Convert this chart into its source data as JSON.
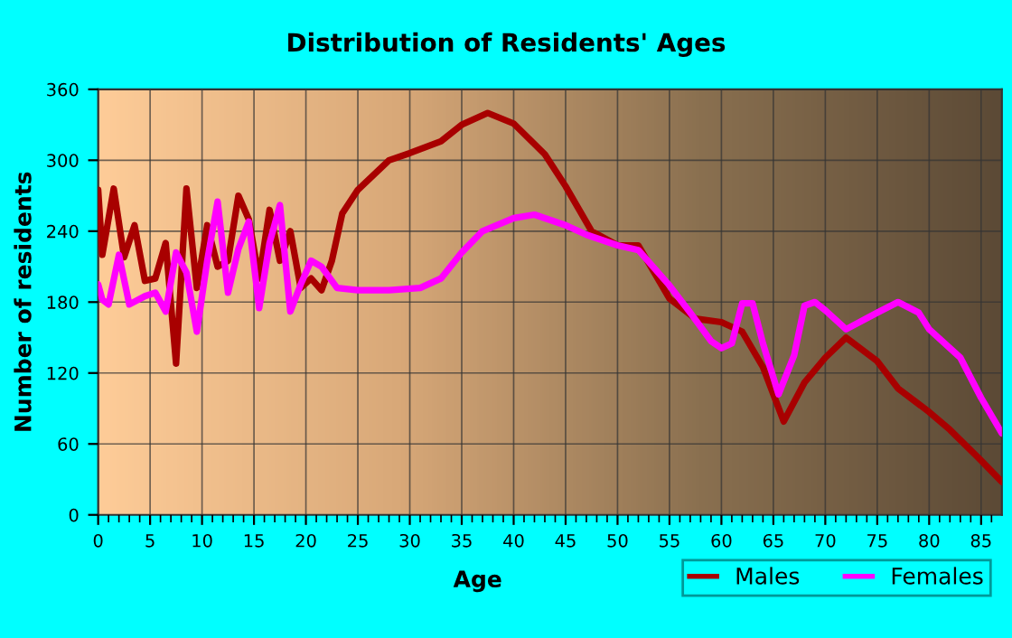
{
  "chart_data": {
    "type": "line",
    "title": "Distribution of Residents' Ages",
    "xlabel": "Age",
    "ylabel": "Number of residents",
    "xlim": [
      0,
      87
    ],
    "xticks": [
      0,
      5,
      10,
      15,
      20,
      25,
      30,
      35,
      40,
      45,
      50,
      55,
      60,
      65,
      70,
      75,
      80,
      85
    ],
    "ylim": [
      0,
      360
    ],
    "yticks": [
      0,
      60,
      120,
      180,
      240,
      300,
      360
    ],
    "grid": true,
    "legend": "bottom right",
    "marker": "none",
    "line_style": "solid",
    "series": [
      {
        "name": "Males",
        "color": "#a80000",
        "x": [
          0,
          0.4,
          1.5,
          2.5,
          3.5,
          4.5,
          5.5,
          6.5,
          7.5,
          8.5,
          9.5,
          10.5,
          11.5,
          12.5,
          13.5,
          14.5,
          15.5,
          16.5,
          17.5,
          18.5,
          19.5,
          20.5,
          21.5,
          22.5,
          23.5,
          25,
          28,
          30,
          33,
          35,
          37.5,
          40,
          43,
          45,
          47.5,
          50,
          52,
          55,
          57.5,
          60,
          62,
          64,
          66,
          68,
          70,
          72,
          75,
          77,
          80,
          82,
          85,
          87
        ],
        "values": [
          275,
          220,
          276,
          218,
          245,
          198,
          200,
          230,
          128,
          276,
          192,
          245,
          210,
          215,
          270,
          250,
          200,
          258,
          215,
          240,
          192,
          200,
          190,
          215,
          255,
          275,
          300,
          306,
          316,
          330,
          340,
          331,
          305,
          278,
          240,
          228,
          228,
          183,
          166,
          163,
          155,
          125,
          79,
          112,
          133,
          150,
          130,
          107,
          87,
          72,
          46,
          28
        ]
      },
      {
        "name": "Females",
        "color": "#ff00ff",
        "x": [
          0,
          0.4,
          1,
          2,
          3,
          4.5,
          5.5,
          6.5,
          7.5,
          8.5,
          9.5,
          10.5,
          11.5,
          12.5,
          13.5,
          14.5,
          15.5,
          16.5,
          17.5,
          18.5,
          19.5,
          20.5,
          21.5,
          23,
          25,
          28,
          31,
          33,
          35,
          37,
          40,
          42,
          45,
          47,
          50,
          52,
          55,
          57,
          59,
          60,
          61,
          62,
          63,
          64,
          65.5,
          67,
          68,
          69,
          70,
          72,
          75,
          77,
          79,
          80,
          83,
          85,
          87
        ],
        "values": [
          195,
          182,
          178,
          220,
          178,
          185,
          188,
          172,
          222,
          205,
          155,
          215,
          265,
          188,
          225,
          248,
          175,
          230,
          262,
          172,
          195,
          215,
          210,
          192,
          190,
          190,
          192,
          200,
          222,
          240,
          251,
          254,
          245,
          237,
          228,
          224,
          194,
          171,
          147,
          141,
          145,
          179,
          179,
          145,
          102,
          135,
          177,
          180,
          173,
          157,
          171,
          180,
          171,
          157,
          133,
          99,
          69
        ]
      }
    ]
  }
}
